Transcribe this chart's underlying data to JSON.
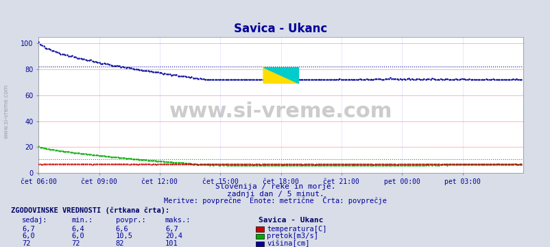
{
  "title": "Savica - Ukanc",
  "bg_color": "#d8dde8",
  "plot_bg_color": "#ffffff",
  "grid_color_h": "#ff9999",
  "grid_color_v": "#ddddff",
  "xlabel_times": [
    "čet 06:00",
    "čet 09:00",
    "čet 12:00",
    "čet 15:00",
    "čet 18:00",
    "čet 21:00",
    "pet 00:00",
    "pet 03:00"
  ],
  "ylabel_values": [
    0,
    20,
    40,
    60,
    80,
    100
  ],
  "ylim": [
    0,
    105
  ],
  "xlim": [
    0,
    288
  ],
  "watermark": "www.si-vreme.com",
  "subtitle1": "Slovenija / reke in morje.",
  "subtitle2": "zadnji dan / 5 minut.",
  "subtitle3": "Meritve: povprečne  Enote: metrične  Črta: povprečje",
  "legend_title": "Savica - Ukanc",
  "legend_items": [
    {
      "label": "temperatura[C]",
      "color": "#cc0000"
    },
    {
      "label": "pretok[m3/s]",
      "color": "#00aa00"
    },
    {
      "label": "višina[cm]",
      "color": "#000099"
    }
  ],
  "table_header": "ZGODOVINSKE VREDNOSTI (črtkana črta):",
  "table_cols": [
    "sedaj:",
    "min.:",
    "povpr.:",
    "maks.:"
  ],
  "table_rows": [
    [
      "6,7",
      "6,4",
      "6,6",
      "6,7"
    ],
    [
      "6,0",
      "6,0",
      "10,5",
      "20,4"
    ],
    [
      "72",
      "72",
      "82",
      "101"
    ]
  ],
  "temp_avg": 6.6,
  "temp_max": 6.7,
  "temp_min": 6.4,
  "flow_avg": 10.5,
  "flow_max": 20.4,
  "flow_min": 6.0,
  "height_avg": 82,
  "height_max": 101,
  "height_min": 72,
  "title_color": "#000099",
  "subtitle_color": "#000099",
  "table_header_color": "#000066",
  "table_data_color": "#000099",
  "tick_color": "#000099",
  "axis_label_color": "#000099"
}
